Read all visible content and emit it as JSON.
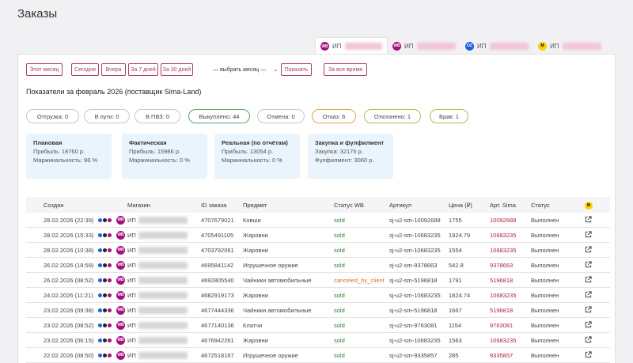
{
  "page": {
    "title": "Заказы"
  },
  "shop_tabs": [
    {
      "marketplace": "wb",
      "label": "ИП",
      "active": true
    },
    {
      "marketplace": "wb",
      "label": "ИП",
      "active": false
    },
    {
      "marketplace": "ozon",
      "label": "ИП",
      "active": false
    },
    {
      "marketplace": "ym",
      "label": "ИП",
      "active": false
    }
  ],
  "filters": {
    "this_month": "Этот месяц",
    "today": "Сегодня",
    "yesterday": "Вчера",
    "last_7": "За 7 дней",
    "last_30": "За 30 дней",
    "month_select": "— выбрать месяц —",
    "show": "Показать",
    "all_time": "За все время"
  },
  "period_title": "Показатели за февраль 2026 (поставщик Sima-Land)",
  "status_pills": [
    {
      "label": "Отгрузка: 0",
      "color": "#c8c8cc"
    },
    {
      "label": "В пути: 0",
      "color": "#c8c8cc"
    },
    {
      "label": "В ПВЗ: 0",
      "color": "#c8c8cc"
    },
    {
      "label": "Выкуплено: 44",
      "color": "#55a463"
    },
    {
      "label": "Отмена: 0",
      "color": "#c8c8cc"
    },
    {
      "label": "Отказ: 6",
      "color": "#e2a44a"
    },
    {
      "label": "Отклонено: 1",
      "color": "#a8c252"
    },
    {
      "label": "Брак: 1",
      "color": "#a8c252"
    }
  ],
  "cards": [
    {
      "title": "Плановая",
      "line1": "Прибыль: 18760 р.",
      "line2": "Маржинальность: 96 %"
    },
    {
      "title": "Фактическая",
      "line1": "Прибыль: 15986 р.",
      "line2": "Маржинальность: 0 %"
    },
    {
      "title": "Реальная (по отчётам)",
      "line1": "Прибыль: 13054 р.",
      "line2": "Маржинальность: 0 %"
    },
    {
      "title": "Закупка и фулфилмент",
      "line1": "Закупка: 32176 р.",
      "line2": "Фулфилмент: 3060 р."
    }
  ],
  "table": {
    "headers": {
      "created": "Создан",
      "shop": "Магазин",
      "order_id": "ID заказа",
      "subject": "Предмет",
      "status_wb": "Статус WB",
      "article": "Артикул",
      "price": "Цена (₽)",
      "art_sima": "Арт. Sima",
      "status": "Статус"
    },
    "rows": [
      {
        "created": "28.02.2026 (22:39)",
        "shop": "ИП",
        "order_id": "4707679021",
        "subject": "Ковши",
        "status_wb": "sold",
        "article": "sj-u2-sm-10092688",
        "price": "1755",
        "art_sima": "10092688",
        "status": "Выполнен"
      },
      {
        "created": "28.02.2026 (15:33)",
        "shop": "ИП",
        "order_id": "4705491105",
        "subject": "Жаровни",
        "status_wb": "sold",
        "article": "sj-u2-sm-10683235",
        "price": "1924.79",
        "art_sima": "10683235",
        "status": "Выполнен"
      },
      {
        "created": "28.02.2026 (10:38)",
        "shop": "ИП",
        "order_id": "4703792061",
        "subject": "Жаровни",
        "status_wb": "sold",
        "article": "sj-u2-sm-10683235",
        "price": "1554",
        "art_sima": "10683235",
        "status": "Выполнен"
      },
      {
        "created": "26.02.2026 (18:59)",
        "shop": "ИП",
        "order_id": "4695841142",
        "subject": "Игрушечное оружие",
        "status_wb": "sold",
        "article": "sj-u2-sm-9378663",
        "price": "542.8",
        "art_sima": "9378663",
        "status": "Выполнен"
      },
      {
        "created": "26.02.2026 (08:52)",
        "shop": "ИП",
        "order_id": "4692805540",
        "subject": "Чайники автомобильные",
        "status_wb": "canceled_by_client",
        "article": "sj-u2-sm-5196818",
        "price": "1791",
        "art_sima": "5196818",
        "status": "Выполнен"
      },
      {
        "created": "24.02.2026 (11:21)",
        "shop": "ИП",
        "order_id": "4682919173",
        "subject": "Жаровни",
        "status_wb": "sold",
        "article": "sj-u2-sm-10683235",
        "price": "1824.74",
        "art_sima": "10683235",
        "status": "Выполнен"
      },
      {
        "created": "23.02.2026 (09:38)",
        "shop": "ИП",
        "order_id": "4677444336",
        "subject": "Чайники автомобильные",
        "status_wb": "sold",
        "article": "sj-u2-sm-5196818",
        "price": "1667",
        "art_sima": "5196818",
        "status": "Выполнен"
      },
      {
        "created": "23.02.2026 (08:52)",
        "shop": "ИП",
        "order_id": "4677140136",
        "subject": "Клатчи",
        "status_wb": "sold",
        "article": "sj-u2-sm-9763081",
        "price": "1154",
        "art_sima": "9763081",
        "status": "Выполнен"
      },
      {
        "created": "23.02.2026 (06:15)",
        "shop": "ИП",
        "order_id": "4676942261",
        "subject": "Жаровни",
        "status_wb": "sold",
        "article": "sj-u2-sm-10683235",
        "price": "1563",
        "art_sima": "10683235",
        "status": "Выполнен"
      },
      {
        "created": "22.02.2026 (08:50)",
        "shop": "ИП",
        "order_id": "4672518167",
        "subject": "Игрушечное оружие",
        "status_wb": "sold",
        "article": "sj-u2-sm-9335857",
        "price": "285",
        "art_sima": "9335857",
        "status": "Выполнен"
      }
    ]
  }
}
